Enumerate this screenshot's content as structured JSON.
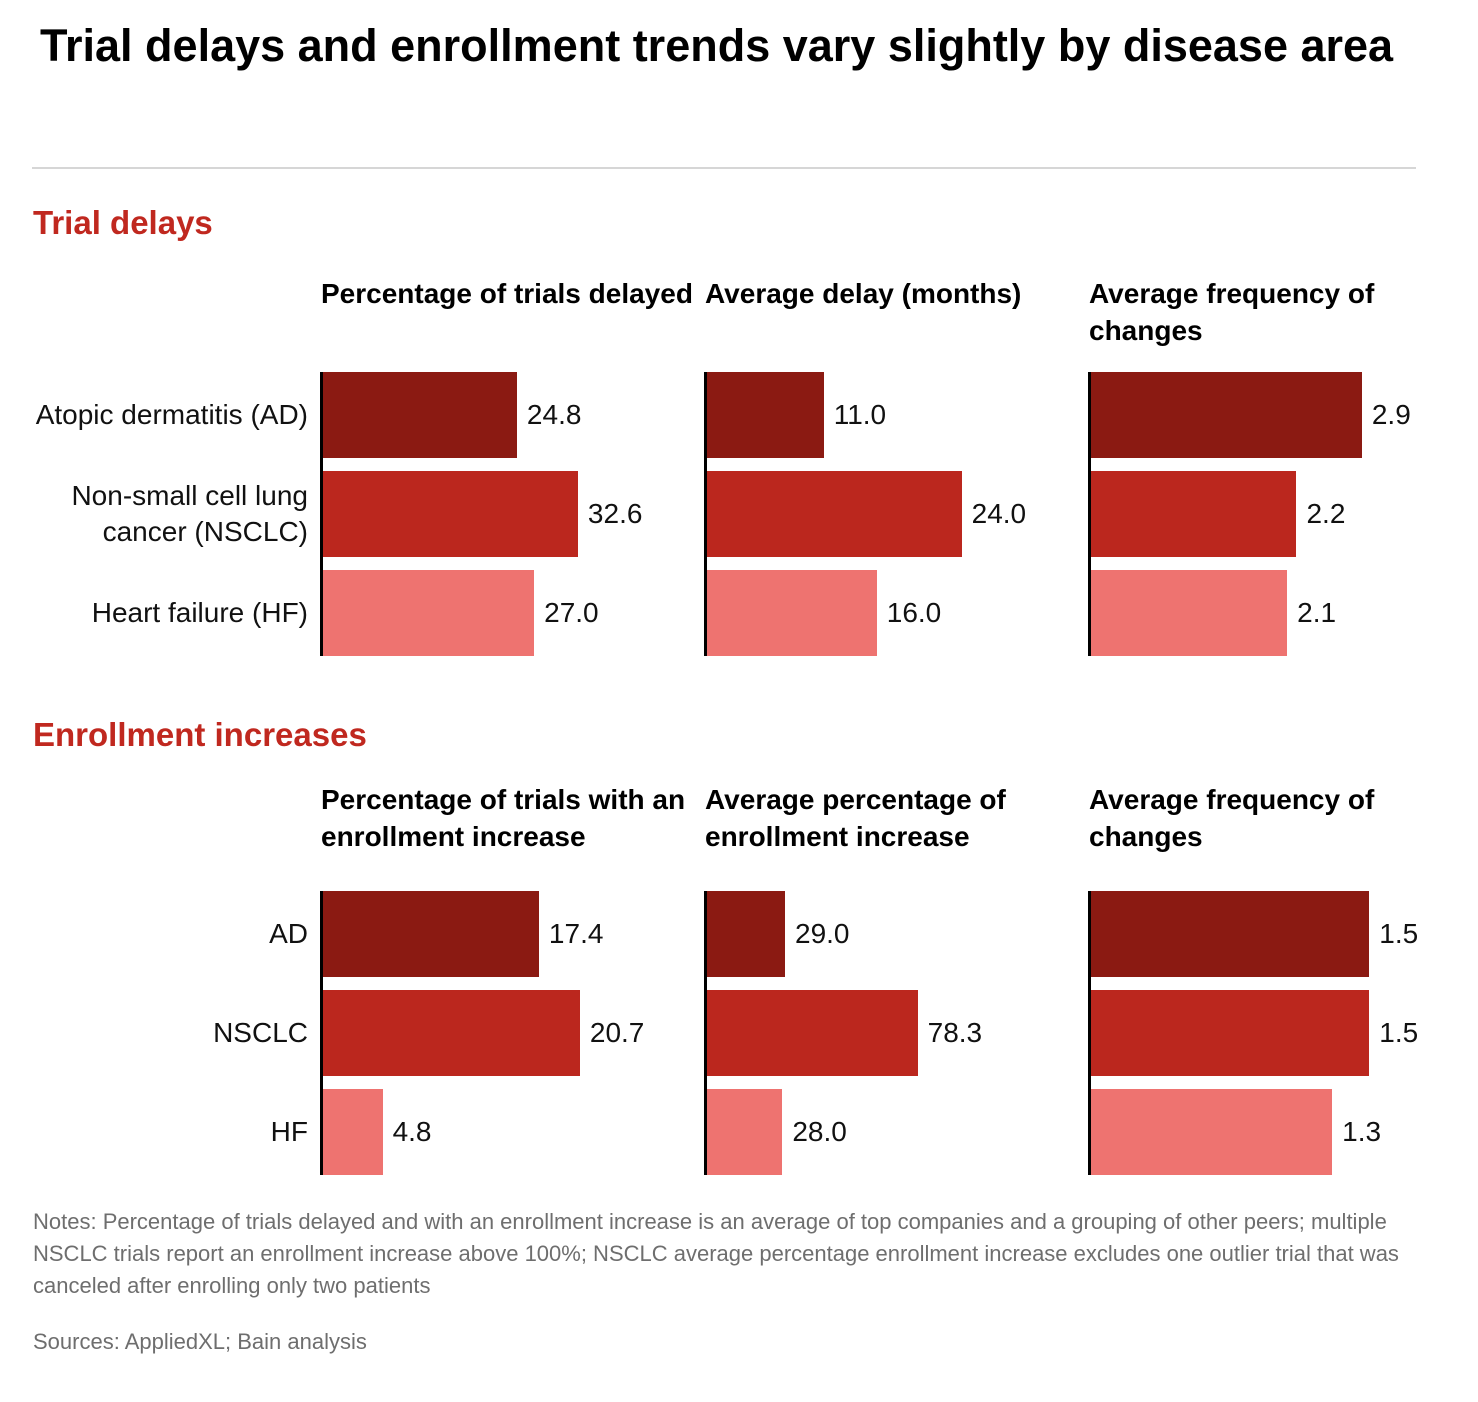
{
  "title": "Trial delays and enrollment trends vary slightly by disease area",
  "colors": {
    "AD": "#8b1a12",
    "NSCLC": "#bb271e",
    "HF": "#ee7370",
    "section": "#c0281f"
  },
  "chart_data": [
    {
      "type": "bar",
      "section": "Trial delays",
      "categories": [
        "Atopic dermatitis (AD)",
        "Non-small cell lung cancer (NSCLC)",
        "Heart failure (HF)"
      ],
      "panels": [
        {
          "title": "Percentage of trials delayed",
          "values": [
            24.8,
            32.6,
            27.0
          ],
          "labels": [
            "24.8",
            "32.6",
            "27.0"
          ]
        },
        {
          "title": "Average delay (months)",
          "values": [
            11.0,
            24.0,
            16.0
          ],
          "labels": [
            "11.0",
            "24.0",
            "16.0"
          ]
        },
        {
          "title": "Average frequency of changes",
          "values": [
            2.9,
            2.2,
            2.1
          ],
          "labels": [
            "2.9",
            "2.2",
            "2.1"
          ]
        }
      ]
    },
    {
      "type": "bar",
      "section": "Enrollment increases",
      "categories": [
        "AD",
        "NSCLC",
        "HF"
      ],
      "panels": [
        {
          "title": "Percentage of trials with an enrollment increase",
          "values": [
            17.4,
            20.7,
            4.8
          ],
          "labels": [
            "17.4",
            "20.7",
            "4.8"
          ]
        },
        {
          "title": "Average percentage of enrollment increase",
          "values": [
            29.0,
            78.3,
            28.0
          ],
          "labels": [
            "29.0",
            "78.3",
            "28.0"
          ]
        },
        {
          "title": "Average frequency of changes",
          "values": [
            1.5,
            1.5,
            1.3
          ],
          "labels": [
            "1.5",
            "1.5",
            "1.3"
          ]
        }
      ]
    }
  ],
  "notes": "Notes: Percentage of trials delayed and with an enrollment increase is an average of top companies and a grouping of other peers; multiple NSCLC trials report an enrollment increase above 100%; NSCLC average percentage enrollment increase excludes one outlier trial that was canceled after enrolling only two patients",
  "sources": "Sources: AppliedXL; Bain analysis"
}
